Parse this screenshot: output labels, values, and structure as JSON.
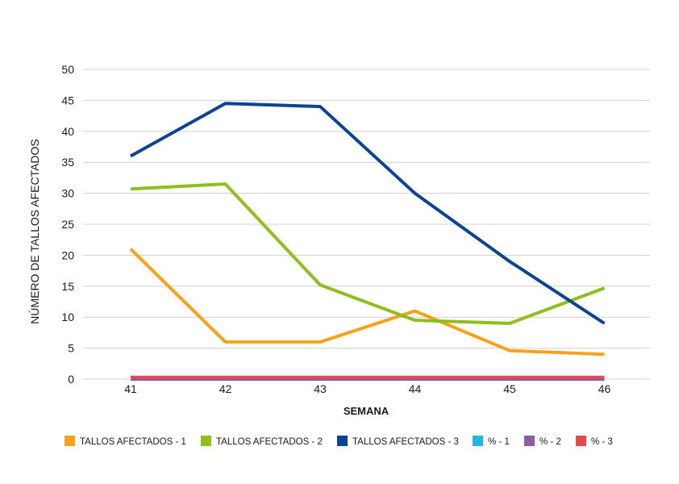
{
  "chart_data": {
    "type": "line",
    "title": "",
    "xlabel": "SEMANA",
    "ylabel": "NÚMERO DE TALLOS AFECTADOS",
    "categories": [
      "41",
      "42",
      "43",
      "44",
      "45",
      "46"
    ],
    "ylim": [
      0,
      50
    ],
    "yticks": [
      "0",
      "5",
      "10",
      "15",
      "20",
      "25",
      "30",
      "35",
      "40",
      "45",
      "50"
    ],
    "grid": true,
    "legend_position": "bottom",
    "series": [
      {
        "name": "TALLOS AFECTADOS - 1",
        "color": "#F7A21B",
        "values": [
          21,
          6,
          6,
          11,
          4.6,
          4
        ]
      },
      {
        "name": "TALLOS AFECTADOS - 2",
        "color": "#8DBF1F",
        "values": [
          30.7,
          31.5,
          15.2,
          9.5,
          9,
          14.7
        ]
      },
      {
        "name": "TALLOS AFECTADOS - 3",
        "color": "#0A4594",
        "values": [
          36,
          44.5,
          44,
          30,
          19,
          9
        ]
      },
      {
        "name": "% - 1",
        "color": "#1FB6E8",
        "values": [
          0,
          0,
          0,
          0,
          0,
          0
        ]
      },
      {
        "name": "% - 2",
        "color": "#8E5BA6",
        "values": [
          0,
          0,
          0,
          0,
          0,
          0
        ]
      },
      {
        "name": "% - 3",
        "color": "#E5484D",
        "values": [
          0.3,
          0.3,
          0.3,
          0.3,
          0.3,
          0.3
        ]
      }
    ]
  }
}
